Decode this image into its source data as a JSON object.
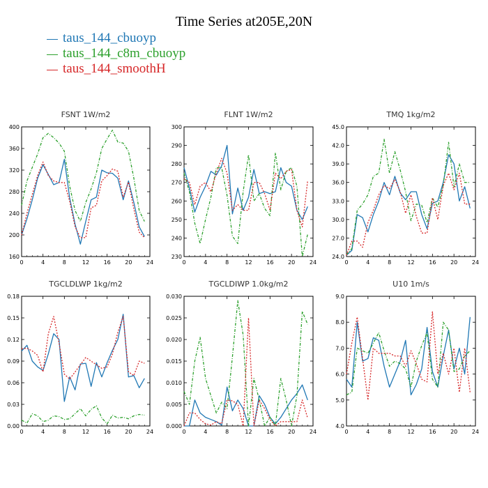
{
  "figure": {
    "title": "Time Series at205E,20N",
    "legend": [
      {
        "label": "taus_144_cbuoyp",
        "color": "#1f77b4"
      },
      {
        "label": "taus_144_c8m_cbuoyp",
        "color": "#2ca02c"
      },
      {
        "label": "taus_144_smoothH",
        "color": "#d62728"
      }
    ]
  },
  "chart_data": [
    {
      "type": "line",
      "title": "FSNT  1W/m2",
      "xlim": [
        0,
        24
      ],
      "ylim": [
        160,
        400
      ],
      "x_ticks": [
        "0",
        "4",
        "8",
        "12",
        "16",
        "20",
        "24"
      ],
      "y_ticks": [
        "160",
        "200",
        "240",
        "280",
        "320",
        "360",
        "400"
      ],
      "x": [
        0,
        1,
        2,
        3,
        4,
        5,
        6,
        7,
        8,
        9,
        10,
        11,
        12,
        13,
        14,
        15,
        16,
        17,
        18,
        19,
        20,
        21,
        22,
        23
      ],
      "series": [
        {
          "name": "taus_144_cbuoyp",
          "color": "#1f77b4",
          "dash": "",
          "values": [
            200,
            230,
            265,
            305,
            330,
            312,
            293,
            297,
            340,
            268,
            220,
            183,
            225,
            265,
            270,
            320,
            315,
            314,
            305,
            265,
            300,
            260,
            215,
            197
          ]
        },
        {
          "name": "taus_144_c8m_cbuoyp",
          "color": "#2ca02c",
          "dash": "4,2,1,2",
          "values": [
            255,
            300,
            325,
            350,
            380,
            388,
            380,
            370,
            355,
            290,
            245,
            225,
            260,
            285,
            315,
            360,
            378,
            394,
            372,
            370,
            355,
            305,
            245,
            225
          ]
        },
        {
          "name": "taus_144_smoothH",
          "color": "#d62728",
          "dash": "2,2",
          "values": [
            200,
            240,
            275,
            310,
            335,
            310,
            300,
            297,
            297,
            262,
            215,
            195,
            195,
            250,
            255,
            300,
            310,
            322,
            318,
            270,
            298,
            248,
            205,
            195
          ]
        }
      ]
    },
    {
      "type": "line",
      "title": "FLNT  1W/m2",
      "xlim": [
        0,
        24
      ],
      "ylim": [
        230,
        300
      ],
      "x_ticks": [
        "0",
        "4",
        "8",
        "12",
        "16",
        "20",
        "24"
      ],
      "y_ticks": [
        "230",
        "240",
        "250",
        "260",
        "270",
        "280",
        "290",
        "300"
      ],
      "x": [
        0,
        1,
        2,
        3,
        4,
        5,
        6,
        7,
        8,
        9,
        10,
        11,
        12,
        13,
        14,
        15,
        16,
        17,
        18,
        19,
        20,
        21,
        22,
        23
      ],
      "series": [
        {
          "name": "taus_144_cbuoyp",
          "color": "#1f77b4",
          "dash": "",
          "values": [
            278,
            267,
            254,
            262,
            268,
            276,
            274,
            279,
            290,
            253,
            267,
            255,
            262,
            277,
            264,
            265,
            264,
            265,
            278,
            270,
            268,
            255,
            250,
            257
          ]
        },
        {
          "name": "taus_144_c8m_cbuoyp",
          "color": "#2ca02c",
          "dash": "4,2,1,2",
          "values": [
            275,
            265,
            248,
            237,
            250,
            262,
            278,
            278,
            263,
            241,
            237,
            265,
            285,
            260,
            264,
            256,
            252,
            286,
            266,
            276,
            278,
            268,
            230,
            242
          ]
        },
        {
          "name": "taus_144_smoothH",
          "color": "#d62728",
          "dash": "2,2",
          "values": [
            272,
            270,
            258,
            268,
            270,
            265,
            275,
            283,
            275,
            255,
            258,
            255,
            255,
            270,
            270,
            264,
            255,
            275,
            272,
            276,
            277,
            255,
            246,
            271
          ]
        }
      ]
    },
    {
      "type": "line",
      "title": "TMQ  1kg/m2",
      "xlim": [
        0,
        24
      ],
      "ylim": [
        24.0,
        45.0
      ],
      "x_ticks": [
        "0",
        "4",
        "8",
        "12",
        "16",
        "20",
        "24"
      ],
      "y_ticks": [
        "24.0",
        "27.0",
        "30.0",
        "33.0",
        "36.0",
        "39.0",
        "42.0",
        "45.0"
      ],
      "x": [
        0,
        1,
        2,
        3,
        4,
        5,
        6,
        7,
        8,
        9,
        10,
        11,
        12,
        13,
        14,
        15,
        16,
        17,
        18,
        19,
        20,
        21,
        22,
        23
      ],
      "series": [
        {
          "name": "taus_144_cbuoyp",
          "color": "#1f77b4",
          "dash": "",
          "values": [
            24.2,
            25.0,
            30.8,
            30.3,
            28.0,
            30.8,
            33.0,
            36.0,
            34.0,
            37.0,
            34.3,
            33.2,
            34.5,
            34.5,
            30.8,
            28.5,
            32.6,
            33.0,
            36.0,
            40.5,
            39.0,
            33.0,
            35.3,
            31.8
          ]
        },
        {
          "name": "taus_144_c8m_cbuoyp",
          "color": "#2ca02c",
          "dash": "4,2,1,2",
          "values": [
            24.3,
            25.3,
            31.5,
            32.5,
            34.0,
            37.0,
            37.5,
            43.0,
            37.5,
            41.0,
            38.0,
            34.5,
            29.8,
            32.5,
            32.3,
            29.5,
            33.5,
            32.0,
            35.5,
            42.5,
            35.3,
            39.0,
            36.0,
            36.0
          ]
        },
        {
          "name": "taus_144_smoothH",
          "color": "#d62728",
          "dash": "2,2",
          "values": [
            24.2,
            26.5,
            26.5,
            25.5,
            29.5,
            31.5,
            34.0,
            35.5,
            35.0,
            36.5,
            34.5,
            31.0,
            34.0,
            30.5,
            27.8,
            27.8,
            33.5,
            30.0,
            35.5,
            37.5,
            34.8,
            37.5,
            32.5,
            32.5
          ]
        }
      ]
    },
    {
      "type": "line",
      "title": "TGCLDLWP  1kg/m2",
      "xlim": [
        0,
        24
      ],
      "ylim": [
        0.0,
        0.18
      ],
      "x_ticks": [
        "0",
        "4",
        "8",
        "12",
        "16",
        "20",
        "24"
      ],
      "y_ticks": [
        "0.00",
        "0.03",
        "0.06",
        "0.09",
        "0.12",
        "0.15",
        "0.18"
      ],
      "x": [
        0,
        1,
        2,
        3,
        4,
        5,
        6,
        7,
        8,
        9,
        10,
        11,
        12,
        13,
        14,
        15,
        16,
        17,
        18,
        19,
        20,
        21,
        22,
        23
      ],
      "series": [
        {
          "name": "taus_144_cbuoyp",
          "color": "#1f77b4",
          "dash": "",
          "values": [
            0.104,
            0.112,
            0.09,
            0.082,
            0.077,
            0.1,
            0.128,
            0.12,
            0.034,
            0.068,
            0.05,
            0.086,
            0.087,
            0.055,
            0.088,
            0.068,
            0.088,
            0.105,
            0.12,
            0.155,
            0.068,
            0.07,
            0.053,
            0.066
          ]
        },
        {
          "name": "taus_144_c8m_cbuoyp",
          "color": "#2ca02c",
          "dash": "4,2,1,2",
          "values": [
            0.008,
            0.004,
            0.017,
            0.014,
            0.006,
            0.008,
            0.014,
            0.013,
            0.009,
            0.01,
            0.017,
            0.024,
            0.014,
            0.023,
            0.028,
            0.011,
            0.003,
            0.015,
            0.011,
            0.012,
            0.01,
            0.014,
            0.016,
            0.015
          ]
        },
        {
          "name": "taus_144_smoothH",
          "color": "#d62728",
          "dash": "2,2",
          "values": [
            0.107,
            0.108,
            0.104,
            0.098,
            0.075,
            0.128,
            0.152,
            0.115,
            0.072,
            0.065,
            0.075,
            0.085,
            0.095,
            0.09,
            0.085,
            0.08,
            0.082,
            0.1,
            0.13,
            0.152,
            0.075,
            0.07,
            0.09,
            0.087
          ]
        }
      ]
    },
    {
      "type": "line",
      "title": "TGCLDIWP  1.0kg/m2",
      "xlim": [
        0,
        24
      ],
      "ylim": [
        0.0,
        0.03
      ],
      "x_ticks": [
        "0",
        "4",
        "8",
        "12",
        "16",
        "20",
        "24"
      ],
      "y_ticks": [
        "0.000",
        "0.005",
        "0.010",
        "0.015",
        "0.020",
        "0.025",
        "0.030"
      ],
      "x": [
        0,
        1,
        2,
        3,
        4,
        5,
        6,
        7,
        8,
        9,
        10,
        11,
        12,
        13,
        14,
        15,
        16,
        17,
        18,
        19,
        20,
        21,
        22,
        23
      ],
      "series": [
        {
          "name": "taus_144_cbuoyp",
          "color": "#1f77b4",
          "dash": "",
          "values": [
            0.0,
            0.0,
            0.006,
            0.003,
            0.002,
            0.0015,
            0.001,
            0.0002,
            0.009,
            0.0035,
            0.006,
            0.004,
            0.0,
            0.0,
            0.007,
            0.005,
            0.002,
            0.0005,
            0.002,
            0.004,
            0.006,
            0.0075,
            0.0095,
            0.006
          ]
        },
        {
          "name": "taus_144_c8m_cbuoyp",
          "color": "#2ca02c",
          "dash": "4,2,1,2",
          "values": [
            0.008,
            0.005,
            0.015,
            0.0205,
            0.011,
            0.007,
            0.003,
            0.0055,
            0.004,
            0.016,
            0.029,
            0.021,
            0.0,
            0.011,
            0.006,
            0.0,
            0.002,
            0.0,
            0.011,
            0.006,
            0.0,
            0.007,
            0.0265,
            0.0235
          ]
        },
        {
          "name": "taus_144_smoothH",
          "color": "#d62728",
          "dash": "2,2",
          "values": [
            0.0,
            0.003,
            0.003,
            0.0015,
            0.0005,
            0.0002,
            0.001,
            0.0005,
            0.006,
            0.0058,
            0.005,
            0.0,
            0.025,
            0.0,
            0.006,
            0.004,
            0.0015,
            0.0,
            0.001,
            0.001,
            0.001,
            0.001,
            0.006,
            0.0018
          ]
        }
      ]
    },
    {
      "type": "line",
      "title": "U10  1m/s",
      "xlim": [
        0,
        24
      ],
      "ylim": [
        4.0,
        9.0
      ],
      "x_ticks": [
        "0",
        "4",
        "8",
        "12",
        "16",
        "20",
        "24"
      ],
      "y_ticks": [
        "4.0",
        "5.0",
        "6.0",
        "7.0",
        "8.0",
        "9.0"
      ],
      "x": [
        0,
        1,
        2,
        3,
        4,
        5,
        6,
        7,
        8,
        9,
        10,
        11,
        12,
        13,
        14,
        15,
        16,
        17,
        18,
        19,
        20,
        21,
        22,
        23
      ],
      "series": [
        {
          "name": "taus_144_cbuoyp",
          "color": "#1f77b4",
          "dash": "",
          "values": [
            5.8,
            5.5,
            8.0,
            6.5,
            6.6,
            7.4,
            7.3,
            6.3,
            5.5,
            6.0,
            6.5,
            7.3,
            5.2,
            5.6,
            6.2,
            7.8,
            6.1,
            5.5,
            6.7,
            7.7,
            6.2,
            7.0,
            6.0,
            8.2
          ]
        },
        {
          "name": "taus_144_c8m_cbuoyp",
          "color": "#2ca02c",
          "dash": "4,2,1,2",
          "values": [
            5.2,
            5.3,
            7.0,
            6.9,
            6.8,
            7.2,
            7.6,
            6.9,
            6.3,
            6.5,
            6.4,
            6.2,
            5.5,
            6.5,
            7.1,
            7.6,
            5.8,
            5.5,
            8.0,
            7.7,
            6.1,
            6.2,
            6.7,
            6.9
          ]
        },
        {
          "name": "taus_144_smoothH",
          "color": "#d62728",
          "dash": "2,2",
          "values": [
            6.0,
            7.2,
            8.2,
            6.6,
            5.0,
            7.0,
            6.8,
            6.8,
            6.8,
            6.7,
            6.7,
            6.3,
            6.9,
            6.4,
            5.8,
            5.7,
            8.4,
            6.0,
            6.8,
            6.0,
            7.0,
            5.3,
            7.0,
            5.3
          ]
        }
      ]
    }
  ]
}
